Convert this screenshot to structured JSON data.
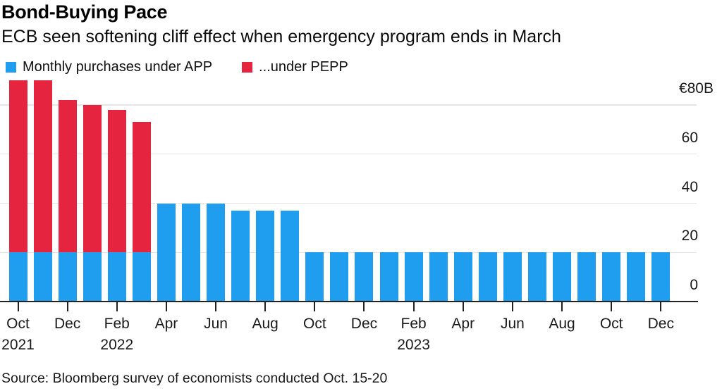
{
  "chart_data": {
    "type": "bar",
    "stacked": true,
    "title": "Bond-Buying Pace",
    "subtitle": "ECB seen softening cliff effect when emergency program ends in March",
    "source": "Source: Bloomberg survey of economists conducted Oct. 15-20",
    "unit": "billions of euros per month",
    "grid": true,
    "legend_position": "top-left",
    "ylim": [
      0,
      90
    ],
    "x": [
      "Oct 2021",
      "Nov 2021",
      "Dec 2021",
      "Jan 2022",
      "Feb 2022",
      "Mar 2022",
      "Apr 2022",
      "May 2022",
      "Jun 2022",
      "Jul 2022",
      "Aug 2022",
      "Sep 2022",
      "Oct 2022",
      "Nov 2022",
      "Dec 2022",
      "Jan 2023",
      "Feb 2023",
      "Mar 2023",
      "Apr 2023",
      "May 2023",
      "Jun 2023",
      "Jul 2023",
      "Aug 2023",
      "Sep 2023",
      "Oct 2023",
      "Nov 2023",
      "Dec 2023"
    ],
    "series": [
      {
        "name": "Monthly purchases under APP",
        "color": "#1f9dee",
        "values": [
          20,
          20,
          20,
          20,
          20,
          20,
          40,
          40,
          40,
          37,
          37,
          37,
          20,
          20,
          20,
          20,
          20,
          20,
          20,
          20,
          20,
          20,
          20,
          20,
          20,
          20,
          20
        ]
      },
      {
        "name": "...under PEPP",
        "color": "#e52440",
        "values": [
          70,
          70,
          62,
          60,
          58,
          53,
          0,
          0,
          0,
          0,
          0,
          0,
          0,
          0,
          0,
          0,
          0,
          0,
          0,
          0,
          0,
          0,
          0,
          0,
          0,
          0,
          0
        ]
      }
    ],
    "y_axis": {
      "ticks": [
        0,
        20,
        40,
        60,
        80
      ],
      "top_label": "€80B"
    },
    "x_axis": {
      "tick_labels": [
        "Oct",
        "Dec",
        "Feb",
        "Apr",
        "Jun",
        "Aug",
        "Oct",
        "Dec",
        "Feb",
        "Apr",
        "Jun",
        "Aug",
        "Oct",
        "Dec"
      ],
      "year_labels": [
        {
          "text": "2021",
          "tick": 0
        },
        {
          "text": "2022",
          "tick": 2
        },
        {
          "text": "2023",
          "tick": 8
        }
      ]
    }
  }
}
